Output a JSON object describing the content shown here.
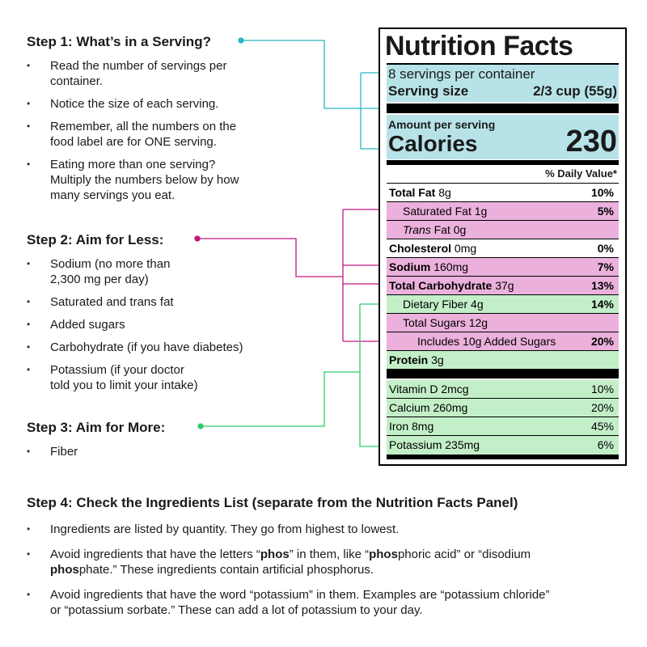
{
  "step1": {
    "title": "Step 1: What’s in a Serving?",
    "items": [
      "Read the number of servings per\ncontainer.",
      "Notice the size of each serving.",
      "Remember, all the numbers on the\nfood label are for ONE serving.",
      "Eating more than one serving?\nMultiply the numbers below by how\nmany servings you eat."
    ]
  },
  "step2": {
    "title": "Step 2: Aim for Less:",
    "items": [
      "Sodium (no more than\n2,300 mg per day)",
      "Saturated and trans fat",
      "Added sugars",
      "Carbohydrate (if you have diabetes)",
      "Potassium (if your doctor\ntold you to limit your intake)"
    ]
  },
  "step3": {
    "title": "Step 3: Aim for More:",
    "items": [
      "Fiber"
    ]
  },
  "step4": {
    "title": "Step 4: Check the Ingredients List (separate from the Nutrition Facts Panel)",
    "item1": "Ingredients are listed by quantity. They go from highest to lowest.",
    "item2": {
      "p1": "Avoid ingredients that have the letters “",
      "b1": "phos",
      "p2": "” in them, like “",
      "b2": "phos",
      "p3": "phoric acid” or “disodium",
      "b3": "phos",
      "p4": "phate.” These ingredients contain artificial phosphorus."
    },
    "item3": "Avoid ingredients that have the word “potassium” in them. Examples are “potassium chloride”\nor “potassium sorbate.” These can add a lot of potassium to your day."
  },
  "label": {
    "title": "Nutrition Facts",
    "servings": "8 servings per container",
    "serving_size_label": "Serving size",
    "serving_size_value": "2/3 cup (55g)",
    "amount_per_serving": "Amount per serving",
    "calories_label": "Calories",
    "calories_value": "230",
    "dv_header": "% Daily Value*",
    "total_fat": {
      "name": "Total Fat",
      "amount": "8g",
      "dv": "10%"
    },
    "saturated_fat": {
      "name": "Saturated Fat",
      "amount": "1g",
      "dv": "5%"
    },
    "trans_fat": {
      "name": "Trans",
      "rest": "Fat 0g"
    },
    "cholesterol": {
      "name": "Cholesterol",
      "amount": "0mg",
      "dv": "0%"
    },
    "sodium": {
      "name": "Sodium",
      "amount": "160mg",
      "dv": "7%"
    },
    "total_carb": {
      "name": "Total Carbohydrate",
      "amount": "37g",
      "dv": "13%"
    },
    "dietary_fiber": {
      "name": "Dietary Fiber",
      "amount": "4g",
      "dv": "14%"
    },
    "total_sugars": {
      "name": "Total Sugars",
      "amount": "12g"
    },
    "added_sugars": {
      "name": "Includes 10g Added Sugars",
      "dv": "20%"
    },
    "protein": {
      "name": "Protein",
      "amount": "3g"
    },
    "vitamin_d": {
      "name": "Vitamin D 2mcg",
      "dv": "10%"
    },
    "calcium": {
      "name": "Calcium 260mg",
      "dv": "20%"
    },
    "iron": {
      "name": "Iron 8mg",
      "dv": "45%"
    },
    "potassium": {
      "name": "Potassium 235mg",
      "dv": "6%"
    }
  },
  "colors": {
    "step1_connector": "#26b8c4",
    "step2_connector": "#c2177f",
    "step3_connector": "#2ecc6a",
    "blue_highlight": "#b7e3e8",
    "pink_highlight": "#ebb1dc",
    "green_highlight": "#c3efc8"
  }
}
